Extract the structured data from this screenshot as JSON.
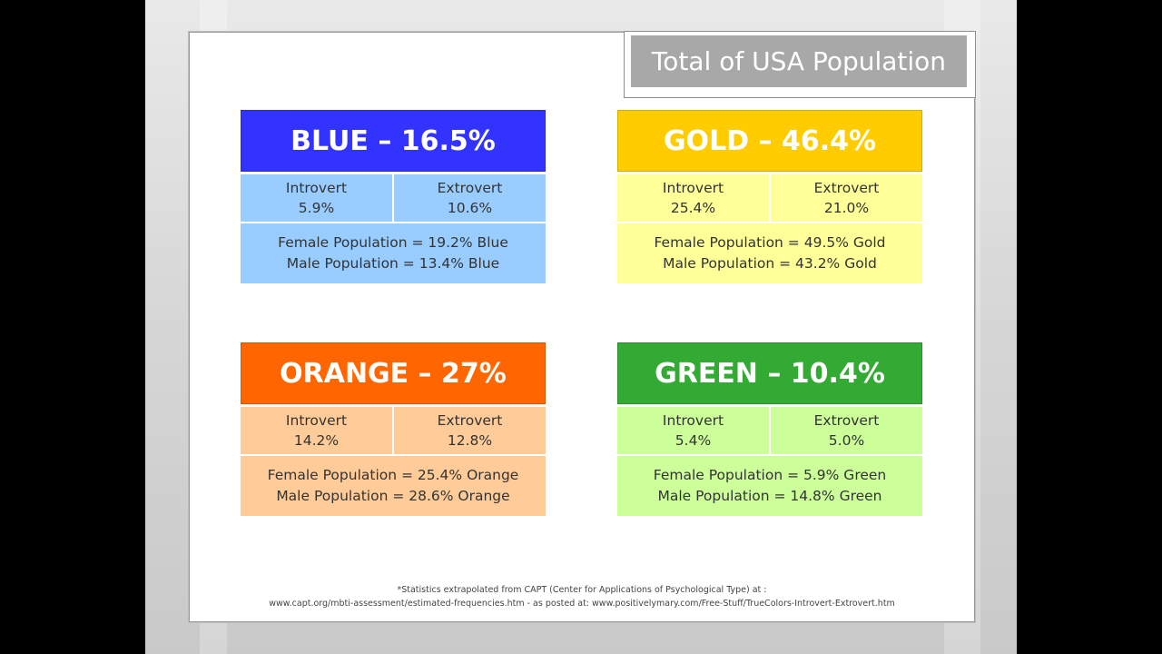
{
  "title": "Total of USA Population",
  "colors": {
    "blue_head": "#3333ff",
    "blue_body": "#99ccff",
    "gold_head": "#ffcc00",
    "gold_body": "#ffff99",
    "orange_head": "#ff6600",
    "orange_body": "#ffcc99",
    "green_head": "#33aa33",
    "green_body": "#ccff99"
  },
  "cards": {
    "blue": {
      "heading": "BLUE – 16.5%",
      "introvert_label": "Introvert",
      "introvert_value": "5.9%",
      "extrovert_label": "Extrovert",
      "extrovert_value": "10.6%",
      "female": "Female Population = 19.2% Blue",
      "male": "Male Population = 13.4% Blue"
    },
    "gold": {
      "heading": "GOLD – 46.4%",
      "introvert_label": "Introvert",
      "introvert_value": "25.4%",
      "extrovert_label": "Extrovert",
      "extrovert_value": "21.0%",
      "female": "Female Population = 49.5% Gold",
      "male": "Male Population = 43.2% Gold"
    },
    "orange": {
      "heading": "ORANGE – 27%",
      "introvert_label": "Introvert",
      "introvert_value": "14.2%",
      "extrovert_label": "Extrovert",
      "extrovert_value": "12.8%",
      "female": "Female Population = 25.4% Orange",
      "male": "Male Population = 28.6% Orange"
    },
    "green": {
      "heading": "GREEN – 10.4%",
      "introvert_label": "Introvert",
      "introvert_value": "5.4%",
      "extrovert_label": "Extrovert",
      "extrovert_value": "5.0%",
      "female": "Female Population = 5.9% Green",
      "male": "Male Population = 14.8% Green"
    }
  },
  "footnote": {
    "line1": "*Statistics extrapolated from CAPT (Center for Applications of Psychological Type) at :",
    "line2": "www.capt.org/mbti-assessment/estimated-frequencies.htm   - as posted at: www.positivelymary.com/Free-Stuff/TrueColors-Introvert-Extrovert.htm"
  }
}
